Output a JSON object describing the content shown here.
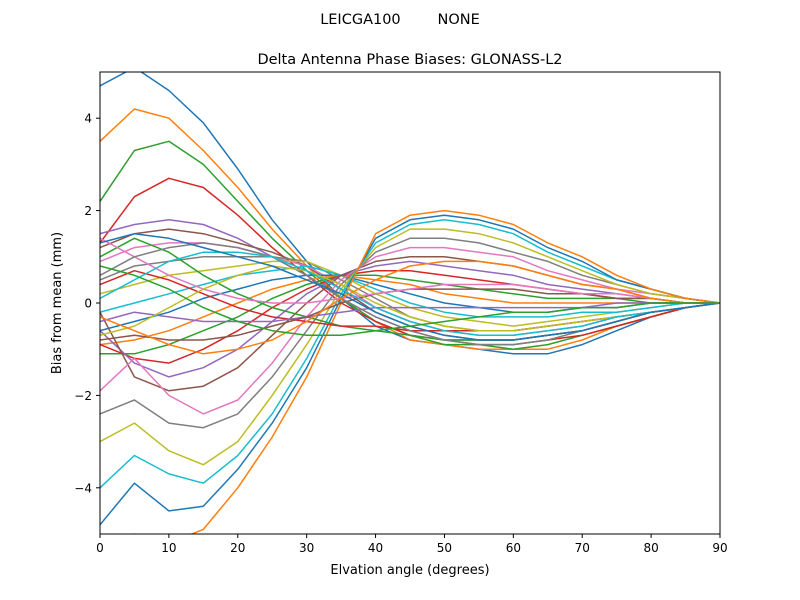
{
  "figure": {
    "suptitle": "LEICGA100        NONE"
  },
  "chart_data": {
    "type": "line",
    "title": "Delta Antenna Phase Biases: GLONASS-L2",
    "xlabel": "Elvation angle (degrees)",
    "ylabel": "Bias from mean (mm)",
    "xlim": [
      0,
      90
    ],
    "ylim": [
      -5,
      5
    ],
    "xticks": [
      0,
      10,
      20,
      30,
      40,
      50,
      60,
      70,
      80,
      90
    ],
    "yticks": [
      -4,
      -2,
      0,
      2,
      4
    ],
    "grid": false,
    "legend": "none",
    "x": [
      0,
      5,
      10,
      15,
      20,
      25,
      30,
      35,
      40,
      45,
      50,
      55,
      60,
      65,
      70,
      75,
      80,
      85,
      90
    ],
    "series": [
      {
        "values": [
          4.7,
          5.1,
          4.6,
          3.9,
          2.9,
          1.8,
          0.9,
          0.1,
          -0.5,
          -0.8,
          -0.9,
          -1.0,
          -1.1,
          -1.1,
          -0.9,
          -0.6,
          -0.3,
          -0.1,
          0.0
        ]
      },
      {
        "values": [
          3.5,
          4.2,
          4.0,
          3.3,
          2.5,
          1.6,
          0.8,
          0.1,
          -0.4,
          -0.8,
          -0.9,
          -1.0,
          -1.0,
          -1.0,
          -0.8,
          -0.5,
          -0.3,
          -0.1,
          0.0
        ]
      },
      {
        "values": [
          2.2,
          3.3,
          3.5,
          3.0,
          2.2,
          1.4,
          0.7,
          0.1,
          -0.4,
          -0.7,
          -0.9,
          -0.9,
          -1.0,
          -0.9,
          -0.7,
          -0.5,
          -0.3,
          -0.1,
          0.0
        ]
      },
      {
        "values": [
          1.3,
          2.3,
          2.7,
          2.5,
          1.9,
          1.2,
          0.6,
          0.0,
          -0.4,
          -0.7,
          -0.8,
          -0.9,
          -0.9,
          -0.8,
          -0.7,
          -0.5,
          -0.3,
          -0.1,
          0.0
        ]
      },
      {
        "values": [
          1.5,
          1.7,
          1.8,
          1.7,
          1.4,
          1.0,
          0.6,
          0.1,
          -0.3,
          -0.6,
          -0.8,
          -0.8,
          -0.8,
          -0.7,
          -0.6,
          -0.4,
          -0.2,
          -0.1,
          0.0
        ]
      },
      {
        "values": [
          1.2,
          1.5,
          1.6,
          1.5,
          1.3,
          1.1,
          0.8,
          0.3,
          -0.2,
          -0.5,
          -0.7,
          -0.8,
          -0.8,
          -0.7,
          -0.6,
          -0.4,
          -0.2,
          -0.1,
          0.0
        ]
      },
      {
        "values": [
          0.9,
          1.2,
          1.3,
          1.3,
          1.2,
          1.0,
          0.8,
          0.4,
          -0.1,
          -0.4,
          -0.6,
          -0.7,
          -0.7,
          -0.6,
          -0.5,
          -0.3,
          -0.2,
          -0.1,
          0.0
        ]
      },
      {
        "values": [
          0.5,
          0.8,
          0.9,
          1.0,
          1.0,
          1.0,
          0.9,
          0.5,
          0.1,
          -0.3,
          -0.5,
          -0.6,
          -0.6,
          -0.5,
          -0.4,
          -0.3,
          -0.2,
          -0.1,
          0.0
        ]
      },
      {
        "values": [
          0.2,
          0.4,
          0.6,
          0.7,
          0.8,
          0.9,
          0.9,
          0.6,
          0.2,
          -0.1,
          -0.3,
          -0.4,
          -0.5,
          -0.4,
          -0.3,
          -0.2,
          -0.1,
          0.0,
          0.0
        ]
      },
      {
        "values": [
          -0.2,
          0.0,
          0.2,
          0.4,
          0.6,
          0.7,
          0.8,
          0.6,
          0.3,
          0.0,
          -0.2,
          -0.3,
          -0.3,
          -0.3,
          -0.2,
          -0.2,
          -0.1,
          0.0,
          0.0
        ]
      },
      {
        "values": [
          -0.6,
          -0.4,
          -0.2,
          0.1,
          0.3,
          0.5,
          0.6,
          0.6,
          0.4,
          0.2,
          0.0,
          -0.1,
          -0.2,
          -0.2,
          -0.1,
          -0.1,
          0.0,
          0.0,
          0.0
        ]
      },
      {
        "values": [
          -0.9,
          -0.8,
          -0.6,
          -0.3,
          0.0,
          0.3,
          0.5,
          0.6,
          0.5,
          0.4,
          0.2,
          0.1,
          0.0,
          0.0,
          0.0,
          0.0,
          0.0,
          0.0,
          0.0
        ]
      },
      {
        "values": [
          -1.1,
          -1.1,
          -0.9,
          -0.6,
          -0.3,
          0.1,
          0.4,
          0.6,
          0.6,
          0.5,
          0.4,
          0.3,
          0.2,
          0.1,
          0.1,
          0.1,
          0.0,
          0.0,
          0.0
        ]
      },
      {
        "values": [
          -0.9,
          -1.2,
          -1.3,
          -1.0,
          -0.6,
          -0.1,
          0.3,
          0.6,
          0.7,
          0.7,
          0.6,
          0.5,
          0.4,
          0.3,
          0.2,
          0.1,
          0.1,
          0.0,
          0.0
        ]
      },
      {
        "values": [
          -0.6,
          -1.3,
          -1.6,
          -1.4,
          -1.0,
          -0.4,
          0.2,
          0.6,
          0.8,
          0.9,
          0.8,
          0.7,
          0.6,
          0.4,
          0.3,
          0.2,
          0.1,
          0.0,
          0.0
        ]
      },
      {
        "values": [
          -0.2,
          -1.6,
          -1.9,
          -1.8,
          -1.4,
          -0.7,
          0.0,
          0.6,
          0.9,
          1.0,
          1.0,
          0.9,
          0.8,
          0.6,
          0.4,
          0.3,
          0.1,
          0.0,
          0.0
        ]
      },
      {
        "values": [
          -1.9,
          -1.2,
          -2.0,
          -2.4,
          -2.1,
          -1.3,
          -0.3,
          0.5,
          1.0,
          1.2,
          1.2,
          1.1,
          1.0,
          0.7,
          0.5,
          0.3,
          0.2,
          0.1,
          0.0
        ]
      },
      {
        "values": [
          -2.4,
          -2.1,
          -2.6,
          -2.7,
          -2.4,
          -1.6,
          -0.6,
          0.4,
          1.1,
          1.4,
          1.4,
          1.3,
          1.1,
          0.9,
          0.6,
          0.4,
          0.2,
          0.1,
          0.0
        ]
      },
      {
        "values": [
          -3.0,
          -2.6,
          -3.2,
          -3.5,
          -3.0,
          -2.0,
          -0.9,
          0.3,
          1.2,
          1.6,
          1.6,
          1.5,
          1.3,
          1.0,
          0.7,
          0.4,
          0.2,
          0.1,
          0.0
        ]
      },
      {
        "values": [
          -4.0,
          -3.3,
          -3.7,
          -3.9,
          -3.3,
          -2.4,
          -1.2,
          0.2,
          1.3,
          1.7,
          1.8,
          1.7,
          1.5,
          1.1,
          0.8,
          0.5,
          0.3,
          0.1,
          0.0
        ]
      },
      {
        "values": [
          -4.8,
          -3.9,
          -4.5,
          -4.4,
          -3.6,
          -2.6,
          -1.4,
          0.1,
          1.4,
          1.8,
          1.9,
          1.8,
          1.6,
          1.2,
          0.9,
          0.5,
          0.3,
          0.1,
          0.0
        ]
      },
      {
        "values": [
          -5.4,
          -5.0,
          -5.2,
          -4.9,
          -4.0,
          -2.9,
          -1.6,
          0.0,
          1.5,
          1.9,
          2.0,
          1.9,
          1.7,
          1.3,
          1.0,
          0.6,
          0.3,
          0.1,
          0.0
        ]
      },
      {
        "values": [
          1.0,
          1.4,
          1.1,
          0.6,
          0.2,
          -0.1,
          -0.3,
          -0.5,
          -0.6,
          -0.7,
          -0.8,
          -0.8,
          -0.8,
          -0.7,
          -0.6,
          -0.4,
          -0.2,
          -0.1,
          0.0
        ]
      },
      {
        "values": [
          0.4,
          0.7,
          0.5,
          0.2,
          -0.1,
          -0.3,
          -0.4,
          -0.5,
          -0.5,
          -0.6,
          -0.6,
          -0.6,
          -0.6,
          -0.5,
          -0.4,
          -0.3,
          -0.2,
          -0.1,
          0.0
        ]
      },
      {
        "values": [
          -0.4,
          -0.2,
          -0.3,
          -0.4,
          -0.4,
          -0.4,
          -0.3,
          -0.2,
          -0.1,
          -0.1,
          -0.1,
          -0.1,
          -0.1,
          -0.1,
          -0.1,
          0.0,
          0.0,
          0.0,
          0.0
        ]
      },
      {
        "values": [
          -0.8,
          -0.7,
          -0.8,
          -0.8,
          -0.7,
          -0.5,
          -0.3,
          0.0,
          0.2,
          0.3,
          0.3,
          0.3,
          0.3,
          0.2,
          0.2,
          0.1,
          0.1,
          0.0,
          0.0
        ]
      },
      {
        "values": [
          1.4,
          1.0,
          0.6,
          0.3,
          0.1,
          0.0,
          0.0,
          0.1,
          0.2,
          0.3,
          0.4,
          0.4,
          0.4,
          0.3,
          0.2,
          0.2,
          0.1,
          0.0,
          0.0
        ]
      },
      {
        "values": [
          0.6,
          1.0,
          1.2,
          1.3,
          1.2,
          1.0,
          0.6,
          0.1,
          -0.3,
          -0.6,
          -0.8,
          -0.9,
          -0.9,
          -0.8,
          -0.6,
          -0.4,
          -0.2,
          -0.1,
          0.0
        ]
      },
      {
        "values": [
          -0.7,
          -0.5,
          -0.1,
          0.3,
          0.6,
          0.8,
          0.7,
          0.4,
          0.0,
          -0.3,
          -0.5,
          -0.6,
          -0.6,
          -0.5,
          -0.4,
          -0.3,
          -0.2,
          -0.1,
          0.0
        ]
      },
      {
        "values": [
          0.1,
          0.5,
          0.9,
          1.1,
          1.1,
          1.0,
          0.7,
          0.3,
          -0.1,
          -0.4,
          -0.6,
          -0.7,
          -0.7,
          -0.6,
          -0.5,
          -0.3,
          -0.2,
          -0.1,
          0.0
        ]
      },
      {
        "values": [
          1.3,
          1.5,
          1.4,
          1.2,
          1.0,
          0.8,
          0.5,
          0.2,
          -0.2,
          -0.5,
          -0.7,
          -0.8,
          -0.8,
          -0.7,
          -0.6,
          -0.4,
          -0.2,
          -0.1,
          0.0
        ]
      },
      {
        "values": [
          -0.3,
          -0.6,
          -0.9,
          -1.1,
          -1.0,
          -0.8,
          -0.4,
          0.1,
          0.5,
          0.8,
          0.9,
          0.9,
          0.8,
          0.6,
          0.4,
          0.3,
          0.1,
          0.0,
          0.0
        ]
      },
      {
        "values": [
          0.8,
          0.6,
          0.3,
          -0.1,
          -0.4,
          -0.6,
          -0.7,
          -0.7,
          -0.6,
          -0.5,
          -0.4,
          -0.3,
          -0.2,
          -0.2,
          -0.1,
          -0.1,
          0.0,
          0.0,
          0.0
        ]
      }
    ]
  }
}
